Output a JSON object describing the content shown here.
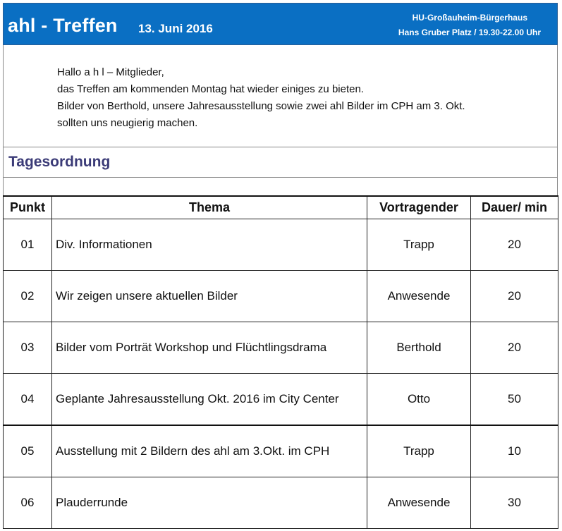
{
  "header": {
    "title": "ahl - Treffen",
    "date": "13. Juni 2016",
    "venue": "HU-Großauheim-Bürgerhaus",
    "address_time": "Hans Gruber Platz / 19.30-22.00 Uhr",
    "background_color": "#0a6fc3"
  },
  "intro": {
    "lines": [
      "Hallo a h l – Mitglieder,",
      "das Treffen am kommenden Montag hat wieder einiges zu bieten.",
      "Bilder von Berthold, unsere Jahresausstellung sowie zwei ahl Bilder im CPH am 3. Okt.",
      "sollten uns neugierig machen."
    ]
  },
  "agenda": {
    "title": "Tagesordnung",
    "title_color": "#3b3b77",
    "columns": [
      "Punkt",
      "Thema",
      "Vortragender",
      "Dauer/ min"
    ],
    "rows": [
      {
        "num": "01",
        "topic": "Div. Informationen",
        "speaker": "Trapp",
        "duration": "20"
      },
      {
        "num": "02",
        "topic": "Wir zeigen unsere aktuellen Bilder",
        "speaker": "Anwesende",
        "duration": "20"
      },
      {
        "num": "03",
        "topic": "Bilder vom Porträt Workshop und Flüchtlingsdrama",
        "speaker": "Berthold",
        "duration": "20"
      },
      {
        "num": "04",
        "topic": "Geplante Jahresausstellung Okt. 2016 im City Center",
        "speaker": "Otto",
        "duration": "50"
      },
      {
        "num": "05",
        "topic": "Ausstellung mit 2 Bildern des ahl am 3.Okt. im CPH",
        "speaker": "Trapp",
        "duration": "10"
      },
      {
        "num": "06",
        "topic": "Plauderrunde",
        "speaker": "Anwesende",
        "duration": "30"
      }
    ]
  }
}
